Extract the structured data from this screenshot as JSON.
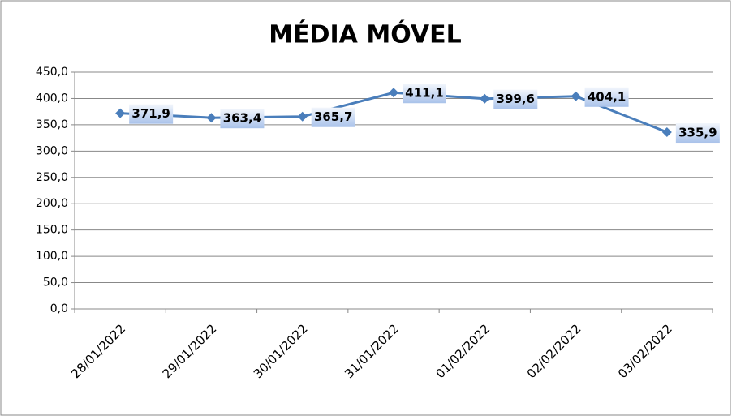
{
  "chart_data": {
    "type": "line",
    "title": "MÉDIA MÓVEL",
    "categories": [
      "28/01/2022",
      "29/01/2022",
      "30/01/2022",
      "31/01/2022",
      "01/02/2022",
      "02/02/2022",
      "03/02/2022"
    ],
    "series": [
      {
        "name": "Média Móvel",
        "color": "#4a7ebb",
        "values": [
          371.9,
          363.4,
          365.7,
          411.1,
          399.6,
          404.1,
          335.9
        ],
        "value_labels": [
          "371,9",
          "363,4",
          "365,7",
          "411,1",
          "399,6",
          "404,1",
          "335,9"
        ]
      }
    ],
    "ylim": [
      0,
      450
    ],
    "yticks": [
      {
        "value": 0,
        "label": "0,0"
      },
      {
        "value": 50,
        "label": "50,0"
      },
      {
        "value": 100,
        "label": "100,0"
      },
      {
        "value": 150,
        "label": "150,0"
      },
      {
        "value": 200,
        "label": "200,0"
      },
      {
        "value": 250,
        "label": "250,0"
      },
      {
        "value": 300,
        "label": "300,0"
      },
      {
        "value": 350,
        "label": "350,0"
      },
      {
        "value": 400,
        "label": "400,0"
      },
      {
        "value": 450,
        "label": "450,0"
      }
    ],
    "grid": true
  }
}
